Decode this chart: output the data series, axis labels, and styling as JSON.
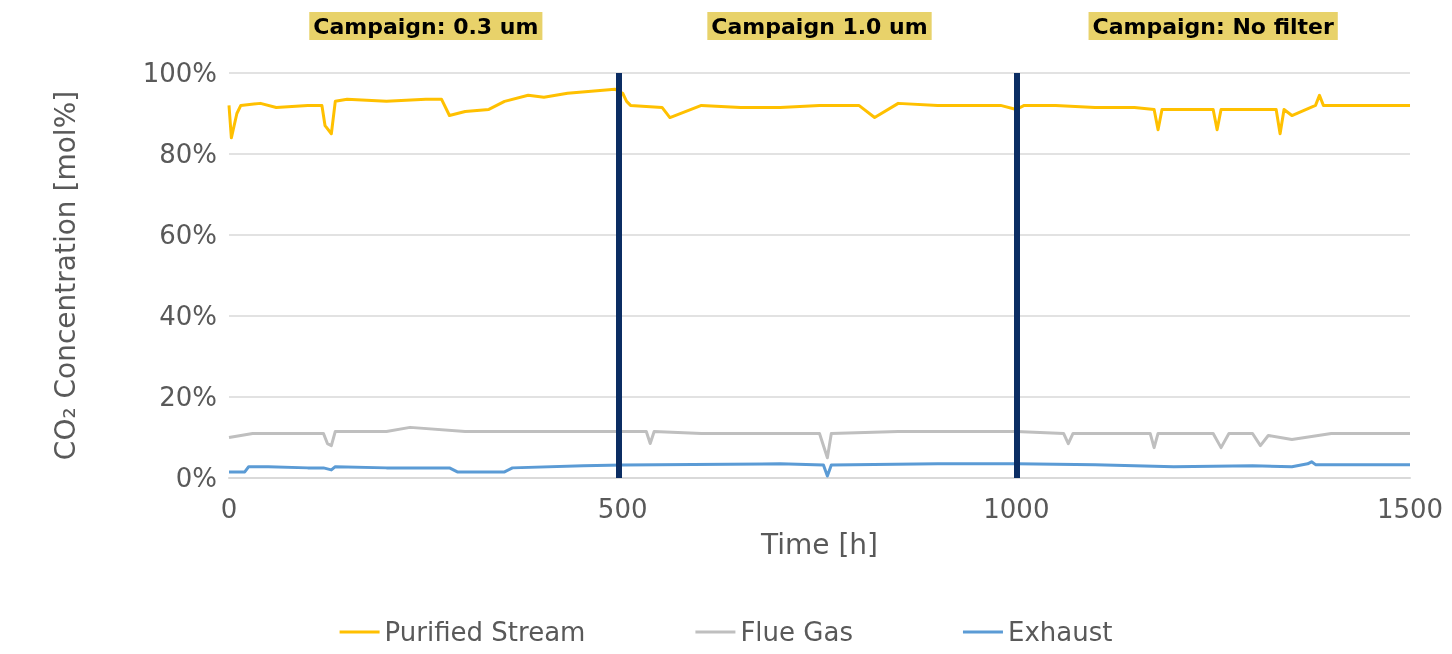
{
  "chart_data": {
    "type": "line",
    "xlabel": "Time [h]",
    "ylabel": "CO₂ Concentration [mol%]",
    "annotations": [
      "Campaign: 0.3 um",
      "Campaign 1.0 um",
      "Campaign: No filter"
    ],
    "xlim": [
      0,
      1500
    ],
    "xticks": [
      0,
      500,
      1000,
      1500
    ],
    "ylim": [
      0,
      100
    ],
    "yticks": [
      {
        "value": 0,
        "label": "0%"
      },
      {
        "value": 20,
        "label": "20%"
      },
      {
        "value": 40,
        "label": "40%"
      },
      {
        "value": 60,
        "label": "60%"
      },
      {
        "value": 80,
        "label": "80%"
      },
      {
        "value": 100,
        "label": "100%"
      }
    ],
    "grid": "y",
    "legend": "bottom",
    "marker": "none",
    "line_style": "solid",
    "ref_lines": [
      {
        "axis": "x",
        "value": 495,
        "color": "#0b2d63"
      },
      {
        "axis": "x",
        "value": 1000,
        "color": "#0b2d63"
      }
    ],
    "series": [
      {
        "name": "Purified Stream",
        "color": "#ffc000",
        "x": [
          0,
          3,
          10,
          15,
          40,
          60,
          100,
          118,
          122,
          130,
          135,
          150,
          200,
          250,
          270,
          280,
          300,
          330,
          350,
          380,
          400,
          430,
          460,
          490,
          500,
          505,
          510,
          550,
          560,
          600,
          650,
          700,
          750,
          800,
          820,
          850,
          900,
          950,
          980,
          1000,
          1010,
          1050,
          1100,
          1150,
          1175,
          1180,
          1185,
          1230,
          1250,
          1255,
          1260,
          1300,
          1330,
          1335,
          1340,
          1350,
          1380,
          1385,
          1390,
          1450,
          1500
        ],
        "values": [
          92,
          84,
          90,
          92,
          92.5,
          91.5,
          92,
          92,
          87,
          85,
          93,
          93.5,
          93,
          93.5,
          93.5,
          89.5,
          90.5,
          91,
          93,
          94.5,
          94,
          95,
          95.5,
          96,
          95,
          93,
          92,
          91.5,
          89,
          92,
          91.5,
          91.5,
          92,
          92,
          89,
          92.5,
          92,
          92,
          92,
          91,
          92,
          92,
          91.5,
          91.5,
          91,
          86,
          91,
          91,
          91,
          86,
          91,
          91,
          91,
          85,
          91,
          89.5,
          92,
          94.5,
          92,
          92,
          92
        ]
      },
      {
        "name": "Flue Gas",
        "color": "#bfbfbf",
        "x": [
          0,
          30,
          100,
          120,
          125,
          130,
          135,
          200,
          230,
          300,
          400,
          500,
          530,
          535,
          540,
          600,
          750,
          760,
          765,
          850,
          1000,
          1060,
          1066,
          1072,
          1100,
          1170,
          1175,
          1180,
          1250,
          1260,
          1270,
          1300,
          1310,
          1320,
          1350,
          1400,
          1500
        ],
        "values": [
          10,
          11,
          11,
          11,
          8.5,
          8,
          11.5,
          11.5,
          12.5,
          11.5,
          11.5,
          11.5,
          11.5,
          8.5,
          11.5,
          11,
          11,
          5,
          11,
          11.5,
          11.5,
          11,
          8.5,
          11,
          11,
          11,
          7.5,
          11,
          11,
          7.5,
          11,
          11,
          8,
          10.5,
          9.5,
          11,
          11
        ]
      },
      {
        "name": "Exhaust",
        "color": "#5b9bd5",
        "x": [
          0,
          20,
          25,
          50,
          100,
          120,
          130,
          135,
          200,
          280,
          290,
          350,
          360,
          450,
          500,
          700,
          755,
          760,
          765,
          900,
          1000,
          1100,
          1200,
          1300,
          1350,
          1370,
          1375,
          1380,
          1500
        ],
        "values": [
          1.5,
          1.5,
          2.8,
          2.8,
          2.5,
          2.5,
          2,
          2.8,
          2.5,
          2.5,
          1.5,
          1.5,
          2.5,
          3,
          3.2,
          3.5,
          3.2,
          0.5,
          3.2,
          3.5,
          3.5,
          3.3,
          2.8,
          3,
          2.8,
          3.5,
          4,
          3.3,
          3.3
        ]
      }
    ]
  }
}
